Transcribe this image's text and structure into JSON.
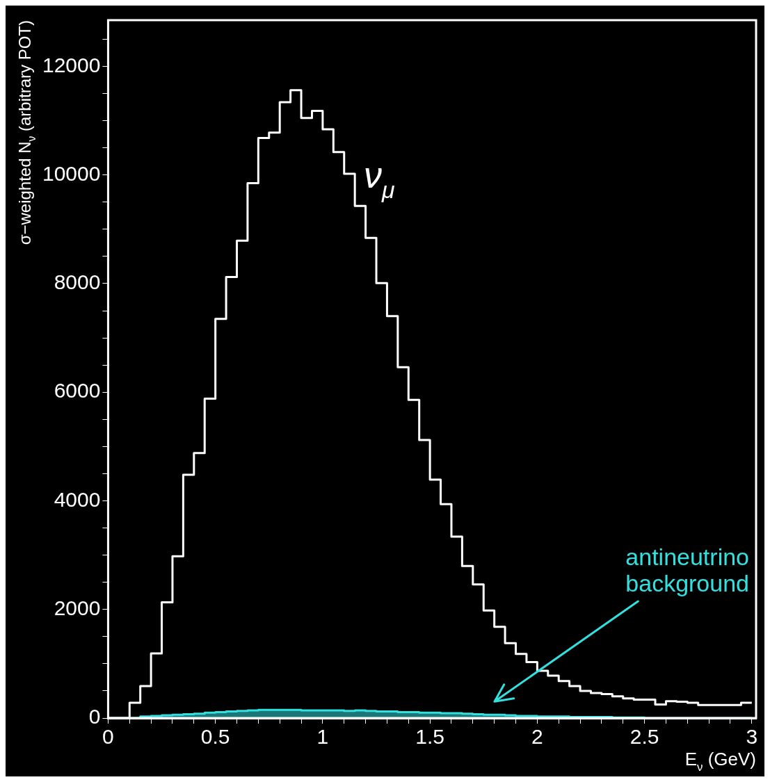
{
  "chart_data": {
    "type": "histogram",
    "xlabel": "E$_{ν}$ (GeV)",
    "ylabel": "σ−weighted N$_{ν}$ (arbitrary POT)",
    "bins": [
      0,
      0.05,
      0.1,
      0.15,
      0.2,
      0.25,
      0.3,
      0.35,
      0.4,
      0.45,
      0.5,
      0.55,
      0.6,
      0.65,
      0.7,
      0.75,
      0.8,
      0.85,
      0.9,
      0.95,
      1,
      1.05,
      1.1,
      1.15,
      1.2,
      1.25,
      1.3,
      1.35,
      1.4,
      1.45,
      1.5,
      1.55,
      1.6,
      1.65,
      1.7,
      1.75,
      1.8,
      1.85,
      1.9,
      1.95,
      2,
      2.05,
      2.1,
      2.15,
      2.2,
      2.25,
      2.3,
      2.35,
      2.4,
      2.45,
      2.5,
      2.55,
      2.6,
      2.65,
      2.7,
      2.75,
      2.8,
      2.85,
      2.9,
      2.95,
      3
    ],
    "series": [
      {
        "name": "ν$_{μ}$",
        "color": "#ffffff",
        "values": [
          0,
          0,
          280,
          590,
          1190,
          2130,
          2980,
          4480,
          4880,
          5880,
          7350,
          8120,
          8790,
          9850,
          10680,
          10780,
          11340,
          11560,
          11050,
          11180,
          10840,
          10420,
          10020,
          9430,
          8840,
          8010,
          7400,
          6460,
          5860,
          5120,
          4390,
          3940,
          3340,
          2800,
          2460,
          1980,
          1680,
          1380,
          1180,
          1030,
          870,
          780,
          680,
          590,
          500,
          460,
          440,
          400,
          360,
          340,
          340,
          250,
          310,
          300,
          280,
          240,
          240,
          240,
          240,
          280
        ]
      },
      {
        "name": "antineutrino background",
        "color": "#33e0e0",
        "values": [
          0,
          0,
          0,
          30,
          40,
          50,
          60,
          70,
          80,
          100,
          110,
          120,
          130,
          140,
          150,
          150,
          150,
          150,
          140,
          140,
          140,
          140,
          130,
          140,
          130,
          120,
          120,
          110,
          110,
          100,
          100,
          90,
          90,
          80,
          70,
          60,
          60,
          50,
          40,
          40,
          30,
          30,
          30,
          20,
          20,
          20,
          20,
          10,
          10,
          10,
          0,
          0,
          0,
          0,
          0,
          0,
          0,
          0,
          0,
          0
        ]
      }
    ],
    "xlim": [
      0,
      3.02
    ],
    "ylim": [
      0,
      12850
    ],
    "xticks": [
      0,
      {
        "value": 0.1,
        "label": null
      },
      {
        "value": 0.2,
        "label": null
      },
      {
        "value": 0.3,
        "label": null
      },
      {
        "value": 0.4,
        "label": null
      },
      0.5,
      {
        "value": 0.6,
        "label": null
      },
      {
        "value": 0.7,
        "label": null
      },
      {
        "value": 0.8,
        "label": null
      },
      {
        "value": 0.9,
        "label": null
      },
      1,
      {
        "value": 1.1,
        "label": null
      },
      {
        "value": 1.2,
        "label": null
      },
      {
        "value": 1.3,
        "label": null
      },
      {
        "value": 1.4,
        "label": null
      },
      1.5,
      {
        "value": 1.6,
        "label": null
      },
      {
        "value": 1.7,
        "label": null
      },
      {
        "value": 1.8,
        "label": null
      },
      {
        "value": 1.9,
        "label": null
      },
      2,
      {
        "value": 2.1,
        "label": null
      },
      {
        "value": 2.2,
        "label": null
      },
      {
        "value": 2.3,
        "label": null
      },
      {
        "value": 2.4,
        "label": null
      },
      2.5,
      {
        "value": 2.6,
        "label": null
      },
      {
        "value": 2.7,
        "label": null
      },
      {
        "value": 2.8,
        "label": null
      },
      {
        "value": 2.9,
        "label": null
      },
      3
    ],
    "yticks": [
      0,
      {
        "value": 500,
        "label": null
      },
      {
        "value": 1000,
        "label": null
      },
      {
        "value": 1500,
        "label": null
      },
      2000,
      {
        "value": 2500,
        "label": null
      },
      {
        "value": 3000,
        "label": null
      },
      {
        "value": 3500,
        "label": null
      },
      4000,
      {
        "value": 4500,
        "label": null
      },
      {
        "value": 5000,
        "label": null
      },
      {
        "value": 5500,
        "label": null
      },
      6000,
      {
        "value": 6500,
        "label": null
      },
      {
        "value": 7000,
        "label": null
      },
      {
        "value": 7500,
        "label": null
      },
      8000,
      {
        "value": 8500,
        "label": null
      },
      {
        "value": 9000,
        "label": null
      },
      {
        "value": 9500,
        "label": null
      },
      10000,
      {
        "value": 10500,
        "label": null
      },
      {
        "value": 11000,
        "label": null
      },
      {
        "value": 11500,
        "label": null
      },
      12000,
      {
        "value": 12500,
        "label": null
      }
    ],
    "legend": false,
    "grid": false
  }
}
